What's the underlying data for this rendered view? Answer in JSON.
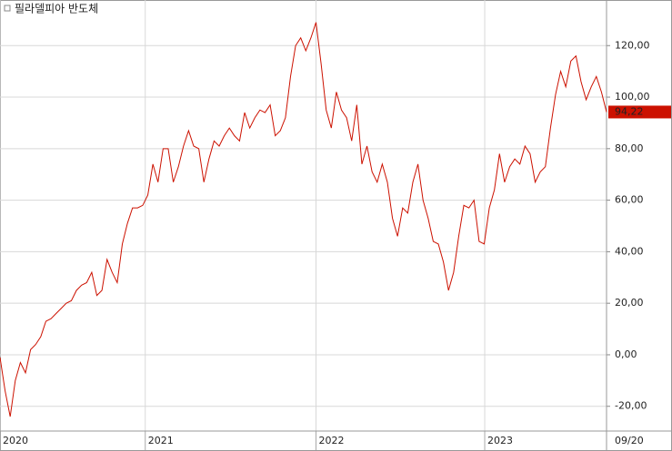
{
  "chart_data": {
    "type": "line",
    "title": "필라델피아 반도체",
    "series": [
      {
        "name": "필라델피아 반도체",
        "color": "#cc1100",
        "values": [
          -1,
          -14,
          -24,
          -10,
          -3,
          -7,
          2,
          4,
          7,
          13,
          14,
          16,
          18,
          20,
          21,
          25,
          27,
          28,
          32,
          23,
          25,
          37,
          32,
          28,
          43,
          51,
          57,
          57,
          58,
          62,
          74,
          67,
          80,
          80,
          67,
          73,
          81,
          87,
          81,
          80,
          67,
          76,
          83,
          81,
          85,
          88,
          85,
          83,
          94,
          88,
          92,
          95,
          94,
          97,
          85,
          87,
          92,
          108,
          120,
          123,
          118,
          123,
          129,
          113,
          95,
          88,
          102,
          95,
          92,
          83,
          97,
          74,
          81,
          71,
          67,
          74,
          67,
          53,
          46,
          57,
          55,
          67,
          74,
          60,
          53,
          44,
          43,
          36,
          25,
          32,
          46,
          58,
          57,
          60,
          44,
          43,
          57,
          64,
          78,
          67,
          73,
          76,
          74,
          81,
          78,
          67,
          71,
          73,
          88,
          101,
          110,
          104,
          114,
          116,
          106,
          99,
          104,
          108,
          102,
          94.22
        ],
        "value_labels": [
          null,
          null,
          null,
          null,
          null,
          null,
          null,
          null,
          null,
          null,
          null,
          null,
          null,
          null,
          null,
          null,
          null,
          null,
          null,
          null,
          null,
          null,
          null,
          null,
          null,
          null,
          null,
          null,
          null,
          null,
          null,
          null,
          null,
          null,
          null,
          null,
          null,
          null,
          null,
          null,
          null,
          null,
          null,
          null,
          null,
          null,
          null,
          null,
          null,
          null,
          null,
          null,
          null,
          null,
          null,
          null,
          null,
          null,
          null,
          null,
          null,
          null,
          null,
          null,
          null,
          null,
          null,
          null,
          null,
          null,
          null,
          null,
          null,
          null,
          null,
          null,
          null,
          null,
          null,
          null,
          null,
          null,
          null,
          null,
          null,
          null,
          null,
          null,
          null,
          null,
          null,
          null,
          null,
          null,
          null,
          null,
          null,
          null,
          null,
          null,
          null,
          null,
          null,
          null,
          null,
          null,
          null,
          null,
          null,
          null,
          null,
          null,
          null,
          null,
          null,
          null,
          null,
          null,
          null,
          "94,22"
        ]
      }
    ],
    "xlim": [
      0,
      119
    ],
    "xticks": [
      {
        "value": 0,
        "label": "2020"
      },
      {
        "value": 28.5,
        "label": "2021"
      },
      {
        "value": 62,
        "label": "2022"
      },
      {
        "value": 95.1,
        "label": "2023"
      },
      {
        "value": 119,
        "label": "09/20"
      }
    ],
    "ylim": [
      -29.6,
      137.7
    ],
    "yticks": [
      {
        "value": -20,
        "label": "-20,00"
      },
      {
        "value": 0,
        "label": "0,00"
      },
      {
        "value": 20,
        "label": "20,00"
      },
      {
        "value": 40,
        "label": "40,00"
      },
      {
        "value": 60,
        "label": "60,00"
      },
      {
        "value": 80,
        "label": "80,00"
      },
      {
        "value": 100,
        "label": "100,00"
      },
      {
        "value": 120,
        "label": "120,00"
      }
    ],
    "grid": true
  }
}
